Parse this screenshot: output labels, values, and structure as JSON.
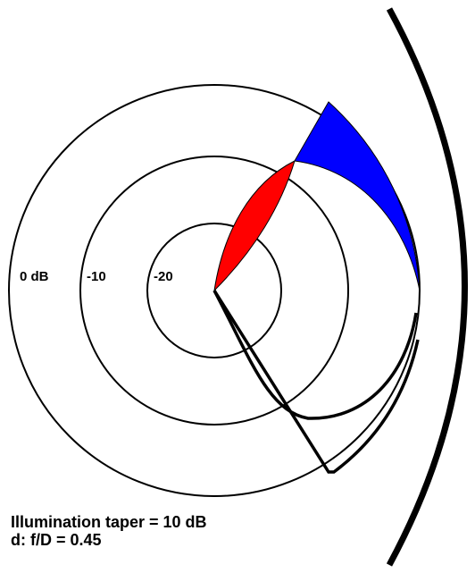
{
  "labels": {
    "outer": "0 dB",
    "middle": "-10",
    "inner": "-20"
  },
  "caption": {
    "line1": "Illumination taper = 10 dB",
    "line2": "d: f/D = 0.45"
  }
}
